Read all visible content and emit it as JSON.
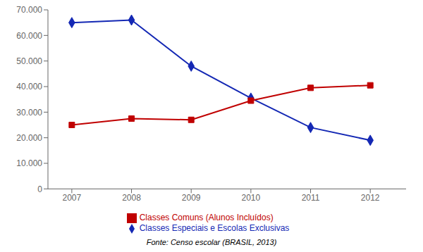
{
  "chart_data": {
    "type": "line",
    "x": [
      2007,
      2008,
      2009,
      2010,
      2011,
      2012
    ],
    "series": [
      {
        "name": "Classes Especiais e Escolas Exclusivas",
        "color": "#1428b4",
        "marker": "diamond",
        "values": [
          65000,
          66000,
          48000,
          35500,
          24000,
          19000
        ]
      },
      {
        "name": "Classes Comuns (Alunos Incluídos)",
        "color": "#c00000",
        "marker": "square",
        "values": [
          25000,
          27500,
          27000,
          34500,
          39500,
          40500
        ]
      }
    ],
    "xlim": [
      2006.6,
      2012.6
    ],
    "xticks": [
      2007,
      2008,
      2009,
      2010,
      2011,
      2012
    ],
    "ylim": [
      0,
      70000
    ],
    "yticks": [
      0,
      {
        "value": 10000,
        "label": "10.000"
      },
      {
        "value": 20000,
        "label": "20.000"
      },
      {
        "value": 30000,
        "label": "30.000"
      },
      {
        "value": 40000,
        "label": "40.000"
      },
      {
        "value": 50000,
        "label": "50.000"
      },
      {
        "value": 60000,
        "label": "60.000"
      },
      {
        "value": 70000,
        "label": "70.000"
      }
    ],
    "grid": false,
    "legend": "bottom",
    "annotations": [
      "Fonte: Censo escolar (BRASIL, 2013)"
    ]
  }
}
